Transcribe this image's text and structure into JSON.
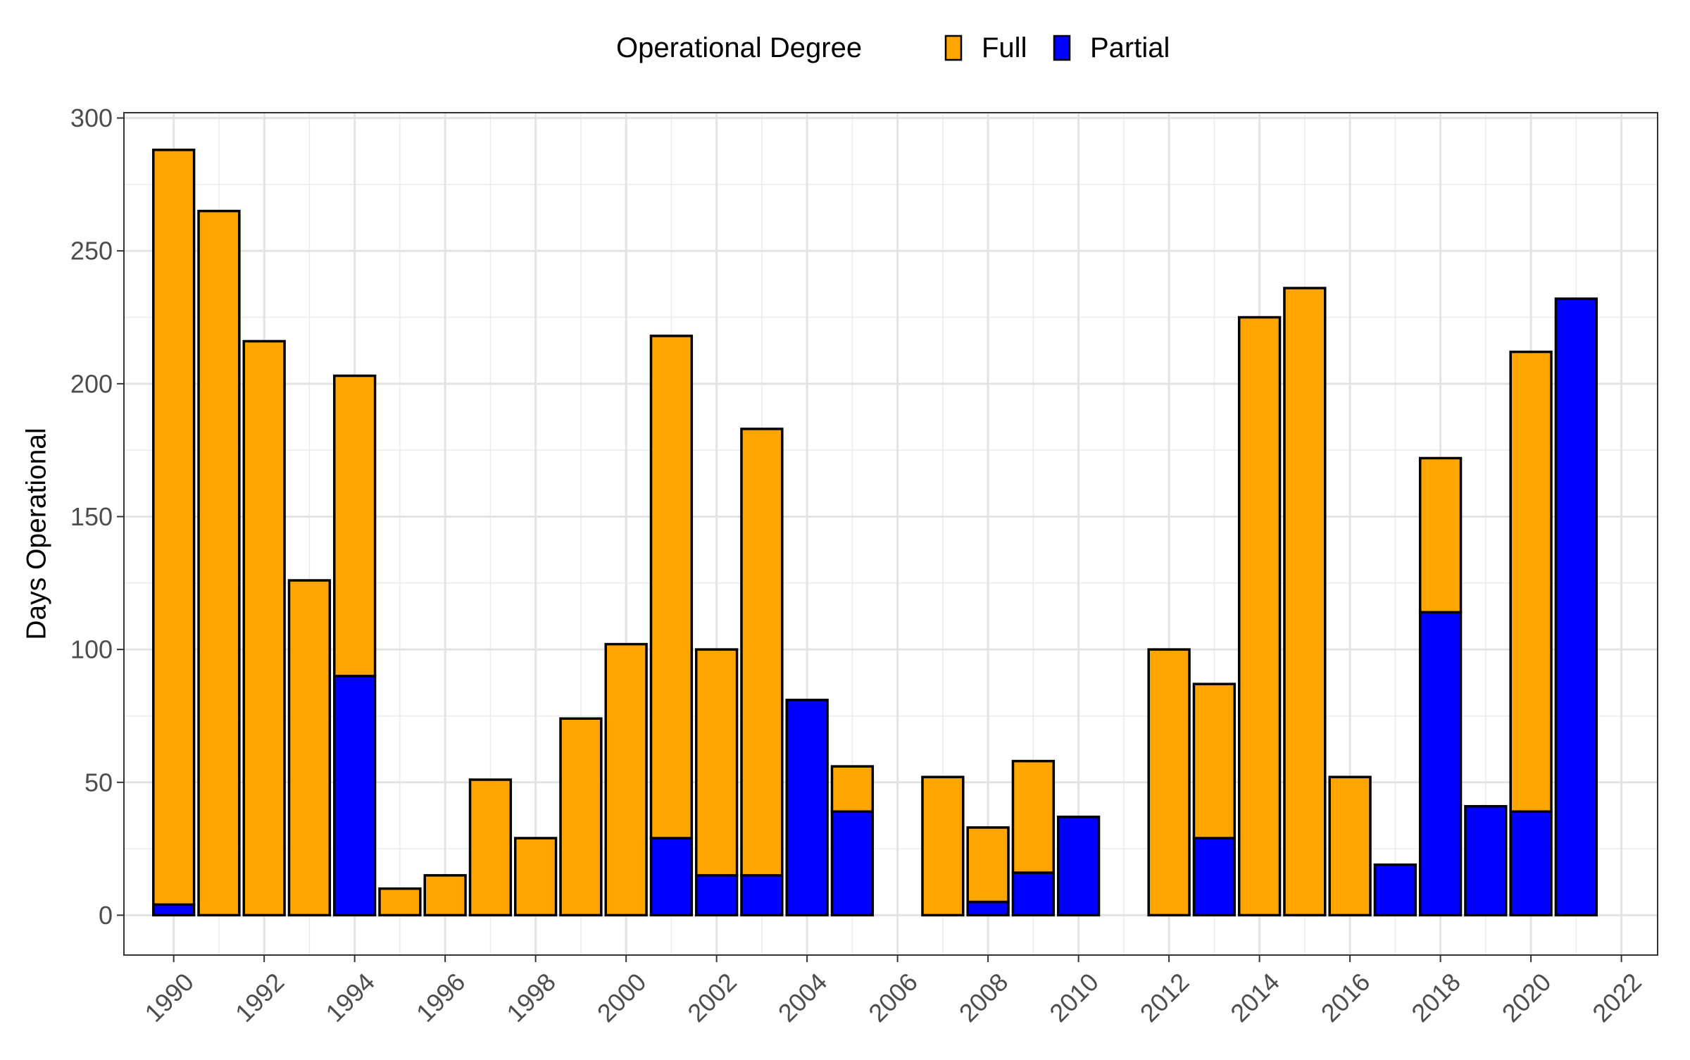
{
  "chart_data": {
    "type": "bar",
    "stacked": true,
    "title": "",
    "xlabel": "",
    "ylabel": "Days Operational",
    "ylim": [
      -15,
      302
    ],
    "xlim": [
      1988.9,
      2022.8
    ],
    "y_ticks": [
      0,
      50,
      100,
      150,
      200,
      250,
      300
    ],
    "x_ticks": [
      1990,
      1992,
      1994,
      1996,
      1998,
      2000,
      2002,
      2004,
      2006,
      2008,
      2010,
      2012,
      2014,
      2016,
      2018,
      2020,
      2022
    ],
    "x_tick_rotation_deg": 45,
    "grid": true,
    "legend": {
      "title": "Operational Degree",
      "position": "top",
      "entries": [
        {
          "name": "Full",
          "color": "#FFA500"
        },
        {
          "name": "Partial",
          "color": "#0000FF"
        }
      ]
    },
    "bar_outline_color": "#000000",
    "years": [
      1990,
      1991,
      1992,
      1993,
      1994,
      1995,
      1996,
      1997,
      1998,
      1999,
      2000,
      2001,
      2002,
      2003,
      2004,
      2005,
      2007,
      2008,
      2009,
      2010,
      2012,
      2013,
      2014,
      2015,
      2016,
      2017,
      2018,
      2019,
      2020,
      2021
    ],
    "series": [
      {
        "name": "Partial",
        "color": "#0000FF",
        "values": [
          4,
          0,
          0,
          0,
          90,
          0,
          0,
          0,
          0,
          0,
          0,
          29,
          15,
          15,
          81,
          39,
          0,
          5,
          16,
          37,
          0,
          29,
          0,
          0,
          0,
          19,
          114,
          41,
          39,
          232
        ]
      },
      {
        "name": "Full",
        "color": "#FFA500",
        "values": [
          284,
          265,
          216,
          126,
          113,
          10,
          15,
          51,
          29,
          74,
          102,
          189,
          85,
          168,
          0,
          17,
          52,
          28,
          42,
          0,
          100,
          58,
          225,
          236,
          52,
          0,
          58,
          0,
          173,
          0
        ]
      }
    ]
  }
}
